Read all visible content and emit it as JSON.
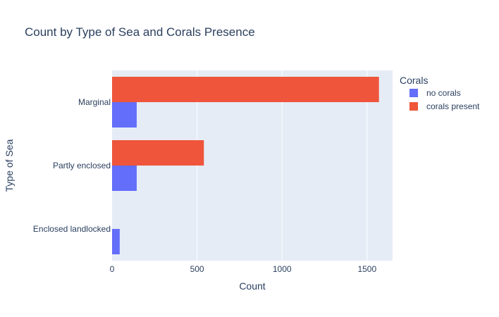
{
  "chart_data": {
    "type": "bar",
    "orientation": "horizontal",
    "title": "Count by Type of Sea and Corals Presence",
    "xlabel": "Count",
    "ylabel": "Type of Sea",
    "categories": [
      "Marginal",
      "Partly enclosed",
      "Enclosed landlocked"
    ],
    "series": [
      {
        "name": "no corals",
        "values": [
          145,
          145,
          45
        ],
        "color": "#636efa"
      },
      {
        "name": "corals present",
        "values": [
          1570,
          540,
          0
        ],
        "color": "#ef553b"
      }
    ],
    "xlim": [
      0,
      1650
    ],
    "xticks": [
      0,
      500,
      1000,
      1500
    ],
    "grid": true,
    "legend": {
      "title": "Corals",
      "placement": "top-right"
    },
    "colors": {
      "plot_bg": "#e5ecf6",
      "grid": "#ffffff",
      "text": "#2a3f5f"
    }
  }
}
